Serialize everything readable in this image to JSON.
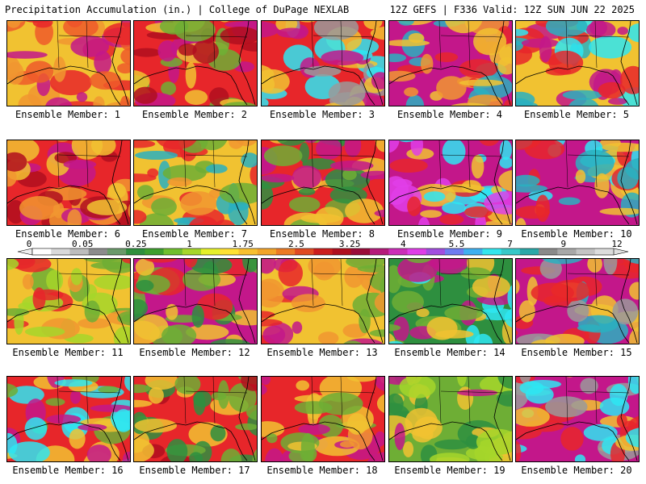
{
  "header": {
    "left_title": "Precipitation Accumulation (in.) | College of DuPage NEXLAB",
    "right_title": "12Z GEFS | F336 Valid: 12Z SUN JUN 22 2025"
  },
  "colorbar": {
    "labels": [
      "0",
      "0.05",
      "0.25",
      "1",
      "1.75",
      "2.5",
      "3.25",
      "4",
      "5.5",
      "7",
      "9",
      "12"
    ],
    "colors": [
      "#ffffff",
      "#d9d9d9",
      "#bdbdbd",
      "#8c8c8c",
      "#6a9a6a",
      "#2f8f3f",
      "#3f9f2f",
      "#6fbf2f",
      "#a6d62a",
      "#e5f02a",
      "#ffe033",
      "#f8c030",
      "#f2a42a",
      "#ec7a25",
      "#e04a22",
      "#cc1d1d",
      "#b00f1f",
      "#9a0c3a",
      "#b51a7a",
      "#cc2db8",
      "#e03ee8",
      "#a24ee0",
      "#6e7cf0",
      "#3fb0f0",
      "#32e6ee",
      "#36c8c8",
      "#2aa8a8",
      "#8a8a8a",
      "#a8a8a8",
      "#c4c4c4",
      "#dcdcdc"
    ]
  },
  "ensemble": {
    "caption_prefix": "Ensemble Member:",
    "members": [
      {
        "label": "Ensemble Member: 1",
        "palette": [
          "#f1c231",
          "#e7262a",
          "#f19730",
          "#c3178a",
          "#ee5a2a"
        ]
      },
      {
        "label": "Ensemble Member: 2",
        "palette": [
          "#e7262a",
          "#f1c231",
          "#6eae35",
          "#c3178a",
          "#b00f1f"
        ]
      },
      {
        "label": "Ensemble Member: 3",
        "palette": [
          "#e7262a",
          "#c3178a",
          "#2ee6f2",
          "#f1c231",
          "#9a9a9a"
        ]
      },
      {
        "label": "Ensemble Member: 4",
        "palette": [
          "#c3178a",
          "#f1c231",
          "#e7262a",
          "#2ab0c0",
          "#f19730"
        ]
      },
      {
        "label": "Ensemble Member: 5",
        "palette": [
          "#f1c231",
          "#c3178a",
          "#2ab0c0",
          "#2ee6f2",
          "#e7262a"
        ]
      },
      {
        "label": "Ensemble Member: 6",
        "palette": [
          "#e7262a",
          "#c3178a",
          "#f1c231",
          "#b00f1f",
          "#f19730"
        ]
      },
      {
        "label": "Ensemble Member: 7",
        "palette": [
          "#f1c231",
          "#e7262a",
          "#6eae35",
          "#f19730",
          "#2ab0c0"
        ]
      },
      {
        "label": "Ensemble Member: 8",
        "palette": [
          "#e7262a",
          "#c3178a",
          "#f1c231",
          "#2e8f3f",
          "#6eae35"
        ]
      },
      {
        "label": "Ensemble Member: 9",
        "palette": [
          "#c3178a",
          "#e03ee8",
          "#f1c231",
          "#e7262a",
          "#2ee6f2"
        ]
      },
      {
        "label": "Ensemble Member: 10",
        "palette": [
          "#c3178a",
          "#2ab0c0",
          "#e7262a",
          "#2ee6f2",
          "#f1c231"
        ]
      },
      {
        "label": "Ensemble Member: 11",
        "palette": [
          "#f1c231",
          "#6eae35",
          "#f19730",
          "#e7262a",
          "#a6d62a"
        ]
      },
      {
        "label": "Ensemble Member: 12",
        "palette": [
          "#c3178a",
          "#2e8f3f",
          "#f1c231",
          "#e7262a",
          "#6eae35"
        ]
      },
      {
        "label": "Ensemble Member: 13",
        "palette": [
          "#f1c231",
          "#e7262a",
          "#6eae35",
          "#f19730",
          "#c3178a"
        ]
      },
      {
        "label": "Ensemble Member: 14",
        "palette": [
          "#2e8f3f",
          "#6eae35",
          "#c3178a",
          "#2ee6f2",
          "#f1c231"
        ]
      },
      {
        "label": "Ensemble Member: 15",
        "palette": [
          "#c3178a",
          "#e7262a",
          "#f1c231",
          "#9a9a9a",
          "#2ab0c0"
        ]
      },
      {
        "label": "Ensemble Member: 16",
        "palette": [
          "#e7262a",
          "#f1c231",
          "#c3178a",
          "#2ee6f2",
          "#6eae35"
        ]
      },
      {
        "label": "Ensemble Member: 17",
        "palette": [
          "#e7262a",
          "#6eae35",
          "#f1c231",
          "#b00f1f",
          "#2e8f3f"
        ]
      },
      {
        "label": "Ensemble Member: 18",
        "palette": [
          "#e7262a",
          "#c3178a",
          "#f1c231",
          "#6eae35",
          "#f19730"
        ]
      },
      {
        "label": "Ensemble Member: 19",
        "palette": [
          "#6eae35",
          "#2e8f3f",
          "#f1c231",
          "#c3178a",
          "#a6d62a"
        ]
      },
      {
        "label": "Ensemble Member: 20",
        "palette": [
          "#c3178a",
          "#2ee6f2",
          "#e7262a",
          "#f1c231",
          "#9a9a9a"
        ]
      }
    ]
  }
}
